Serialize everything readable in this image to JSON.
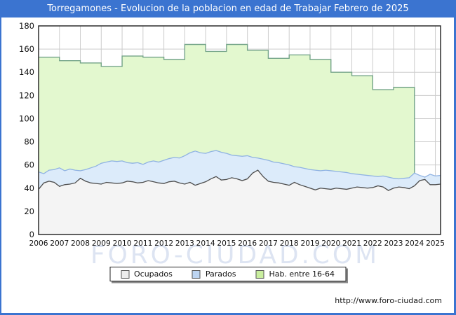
{
  "title": "Torregamones - Evolucion de la poblacion en edad de Trabajar Febrero de 2025",
  "watermark": "FORO-CIUDAD.COM",
  "footer": {
    "url": "http://www.foro-ciudad.com"
  },
  "colors": {
    "frame": "#3b74d0",
    "title_text": "#ffffff",
    "plot_bg": "#ffffff",
    "grid": "#cccccc",
    "axis_box": "#2b2b2b",
    "tick_text": "#111111",
    "watermark": "#c7d3ea"
  },
  "legend": {
    "items": [
      {
        "label": "Ocupados",
        "swatch": "#ececec"
      },
      {
        "label": "Parados",
        "swatch": "#bdd5f2"
      },
      {
        "label": "Hab. entre 16-64",
        "swatch": "#c9ee9f"
      }
    ]
  },
  "chart_data": {
    "type": "area",
    "title": "Torregamones - Evolucion de la poblacion en edad de Trabajar Febrero de 2025",
    "xlabel": "",
    "ylabel": "",
    "ylim": [
      0,
      180
    ],
    "y_ticks": [
      0,
      20,
      40,
      60,
      80,
      100,
      120,
      140,
      160,
      180
    ],
    "x_ticks": [
      2006,
      2007,
      2008,
      2009,
      2010,
      2011,
      2012,
      2013,
      2014,
      2015,
      2016,
      2017,
      2018,
      2019,
      2020,
      2021,
      2022,
      2023,
      2024,
      2025
    ],
    "grid": true,
    "legend_position": "bottom",
    "series": [
      {
        "name": "Hab. entre 16-64",
        "style": "step",
        "fill": "#e3f8cf",
        "line": "#74a489",
        "years": [
          2006,
          2007,
          2008,
          2009,
          2010,
          2011,
          2012,
          2013,
          2014,
          2015,
          2016,
          2017,
          2018,
          2019,
          2020,
          2021,
          2022,
          2023
        ],
        "values": [
          153,
          150,
          148,
          145,
          154,
          153,
          151,
          164,
          158,
          164,
          159,
          152,
          155,
          151,
          140,
          137,
          125,
          127
        ],
        "ends_at": 2024
      },
      {
        "name": "Parados",
        "style": "line",
        "fill": "#dcebfa",
        "line": "#8fb2e2",
        "x_start": 2006,
        "x_step": 0.25,
        "values": [
          54,
          52.5,
          55.5,
          56,
          57.5,
          55,
          56.5,
          55.5,
          55,
          56,
          57.5,
          59,
          61.5,
          62.5,
          63.5,
          63,
          63.5,
          62,
          61.5,
          62,
          60.5,
          62.5,
          63.5,
          62.5,
          64,
          65.5,
          66.5,
          66,
          68,
          70.5,
          72,
          70.5,
          70,
          71.5,
          72.5,
          71,
          70,
          68.5,
          68,
          67.5,
          68,
          66.5,
          66,
          65,
          64,
          62.5,
          62,
          61,
          60,
          58.5,
          58,
          57,
          56,
          55.5,
          55,
          55.5,
          55,
          54.5,
          54,
          53.5,
          52.5,
          52,
          51.5,
          51,
          50.5,
          50,
          50.5,
          49.5,
          48.5,
          48,
          48.5,
          49,
          53,
          51,
          49.5,
          52,
          50.5,
          51
        ]
      },
      {
        "name": "Ocupados",
        "style": "line",
        "fill": "#f4f4f4",
        "line": "#4d4d4d",
        "x_start": 2006,
        "x_step": 0.25,
        "values": [
          39,
          44.5,
          46,
          45,
          41.5,
          43,
          43.5,
          44.5,
          48.5,
          46,
          44.5,
          44,
          43.5,
          45,
          44.5,
          44,
          44.5,
          46,
          45.5,
          44.5,
          45,
          46.5,
          45.5,
          44.5,
          44,
          45.5,
          46,
          44.5,
          43.5,
          45,
          42.5,
          44,
          45.5,
          48,
          50,
          47,
          47.5,
          49,
          48,
          46.5,
          48,
          53,
          55.5,
          50,
          46,
          45,
          44.5,
          43.5,
          42.5,
          45,
          43,
          41.5,
          40,
          38.5,
          40,
          39.5,
          39,
          40,
          39.5,
          39,
          40,
          41,
          40.5,
          40,
          40.5,
          42,
          41,
          38,
          40,
          41,
          40.5,
          39.5,
          42,
          46.5,
          47.5,
          43,
          43,
          43.5
        ]
      }
    ]
  }
}
